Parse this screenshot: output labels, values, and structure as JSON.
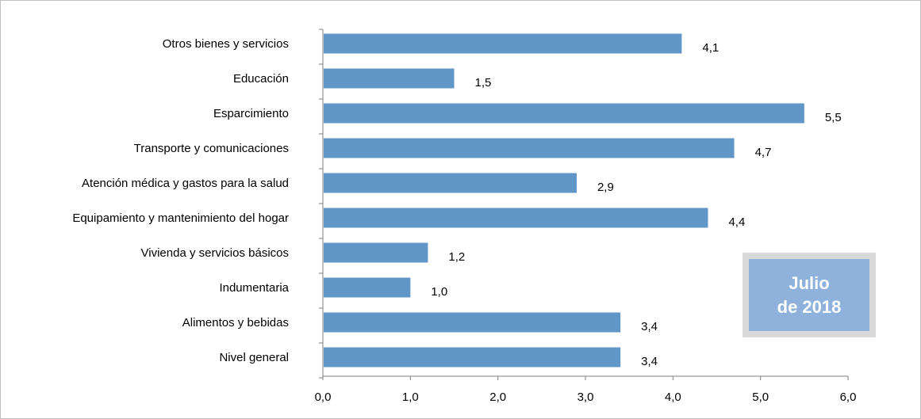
{
  "colors": {
    "bar": "#6196c8",
    "axis": "#7f7f7f",
    "badge_fill": "#8eb2db",
    "badge_border": "#d9d9d9"
  },
  "badge": {
    "line1": "Julio",
    "line2": "de 2018"
  },
  "chart_data": {
    "type": "bar",
    "orientation": "horizontal",
    "categories": [
      "Otros bienes y servicios",
      "Educación",
      "Esparcimiento",
      "Transporte y comunicaciones",
      "Atención médica y gastos para la salud",
      "Equipamiento y  mantenimiento del hogar",
      "Vivienda y servicios básicos",
      "Indumentaria",
      "Alimentos y bebidas",
      "Nivel  general"
    ],
    "values": [
      4.1,
      1.5,
      5.5,
      4.7,
      2.9,
      4.4,
      1.2,
      1.0,
      3.4,
      3.4
    ],
    "value_labels": [
      "4,1",
      "1,5",
      "5,5",
      "4,7",
      "2,9",
      "4,4",
      "1,2",
      "1,0",
      "3,4",
      "3,4"
    ],
    "xlim": [
      0,
      6
    ],
    "x_ticks": [
      0,
      1,
      2,
      3,
      4,
      5,
      6
    ],
    "x_tick_labels": [
      "0,0",
      "1,0",
      "2,0",
      "3,0",
      "4,0",
      "5,0",
      "6,0"
    ],
    "grid": false,
    "legend": "none"
  }
}
